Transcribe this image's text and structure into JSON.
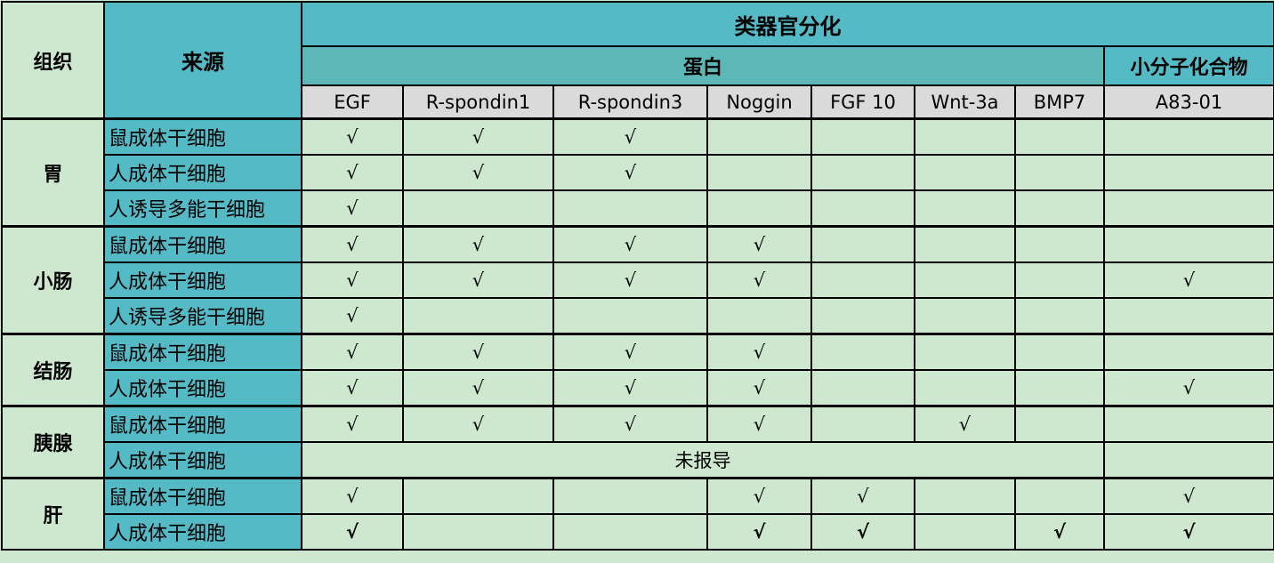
{
  "headers": {
    "tissue": "组织",
    "source": "来源",
    "differentiation": "类器官分化",
    "protein": "蛋白",
    "small_molecule": "小分子化合物",
    "columns": [
      "EGF",
      "R-spondin1",
      "R-spondin3",
      "Noggin",
      "FGF 10",
      "Wnt-3a",
      "BMP7",
      "A83-01"
    ]
  },
  "check_mark": "√",
  "not_reported": "未报导",
  "groups": [
    {
      "tissue": "胃",
      "rows": [
        {
          "source": "鼠成体干细胞",
          "checks": [
            "√",
            "√",
            "√",
            "",
            "",
            "",
            "",
            ""
          ]
        },
        {
          "source": "人成体干细胞",
          "checks": [
            "√",
            "√",
            "√",
            "",
            "",
            "",
            "",
            ""
          ]
        },
        {
          "source": "人诱导多能干细胞",
          "checks": [
            "√",
            "",
            "",
            "",
            "",
            "",
            "",
            ""
          ]
        }
      ]
    },
    {
      "tissue": "小肠",
      "rows": [
        {
          "source": "鼠成体干细胞",
          "checks": [
            "√",
            "√",
            "√",
            "√",
            "",
            "",
            "",
            ""
          ]
        },
        {
          "source": "人成体干细胞",
          "checks": [
            "√",
            "√",
            "√",
            "√",
            "",
            "",
            "",
            "√"
          ]
        },
        {
          "source": "人诱导多能干细胞",
          "checks": [
            "√",
            "",
            "",
            "",
            "",
            "",
            "",
            ""
          ]
        }
      ]
    },
    {
      "tissue": "结肠",
      "rows": [
        {
          "source": "鼠成体干细胞",
          "checks": [
            "√",
            "√",
            "√",
            "√",
            "",
            "",
            "",
            ""
          ]
        },
        {
          "source": "人成体干细胞",
          "checks": [
            "√",
            "√",
            "√",
            "√",
            "",
            "",
            "",
            "√"
          ]
        }
      ]
    },
    {
      "tissue": "胰腺",
      "rows": [
        {
          "source": "鼠成体干细胞",
          "checks": [
            "√",
            "√",
            "√",
            "√",
            "",
            "√",
            "",
            ""
          ]
        },
        {
          "source": "人成体干细胞",
          "note": "未报导",
          "checks": []
        }
      ]
    },
    {
      "tissue": "肝",
      "rows": [
        {
          "source": "鼠成体干细胞",
          "checks": [
            "√",
            "",
            "",
            "√",
            "√",
            "",
            "",
            "√"
          ]
        },
        {
          "source": "人成体干细胞",
          "checks": [
            "√",
            "",
            "",
            "√",
            "√",
            "",
            "√",
            "√"
          ],
          "bold": true
        }
      ]
    }
  ],
  "colors": {
    "teal": "#54bac6",
    "protein_header": "#5db7b7",
    "column_header": "#dadada",
    "body": "#cde8cf"
  }
}
